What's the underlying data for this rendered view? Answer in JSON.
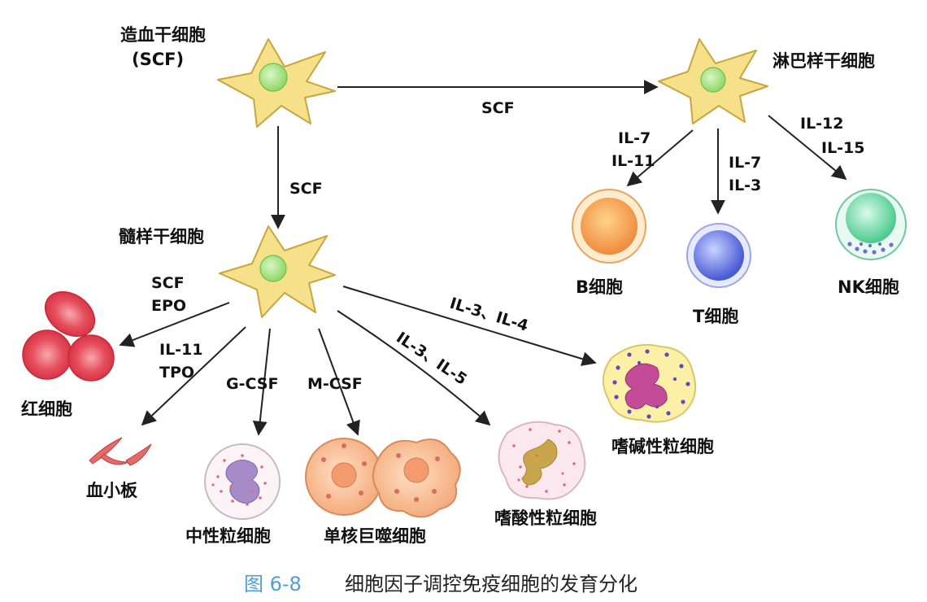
{
  "diagram": {
    "title": "细胞因子调控免疫细胞的发育分化",
    "figure_number": "图 6-8",
    "cells": {
      "hsc": "造血干细胞",
      "hsc_sub": "(SCF)",
      "lymphoid": "淋巴样干细胞",
      "myeloid": "髓样干细胞",
      "b_cell": "B细胞",
      "t_cell": "T细胞",
      "nk_cell": "NK细胞",
      "rbc": "红细胞",
      "platelet": "血小板",
      "neutrophil": "中性粒细胞",
      "monocyte": "单核巨噬细胞",
      "eosinophil": "嗜酸性粒细胞",
      "basophil": "嗜碱性粒细胞"
    },
    "cytokines": {
      "hsc_to_lymphoid": "SCF",
      "hsc_to_myeloid": "SCF",
      "to_b_1": "IL-7",
      "to_b_2": "IL-11",
      "to_t_1": "IL-7",
      "to_t_2": "IL-3",
      "to_nk_1": "IL-12",
      "to_nk_2": "IL-15",
      "to_rbc_1": "SCF",
      "to_rbc_2": "EPO",
      "to_platelet_1": "IL-11",
      "to_platelet_2": "TPO",
      "to_neutrophil": "G-CSF",
      "to_monocyte": "M-CSF",
      "to_eosinophil": "IL-3、IL-5",
      "to_basophil": "IL-3、IL-4"
    }
  }
}
